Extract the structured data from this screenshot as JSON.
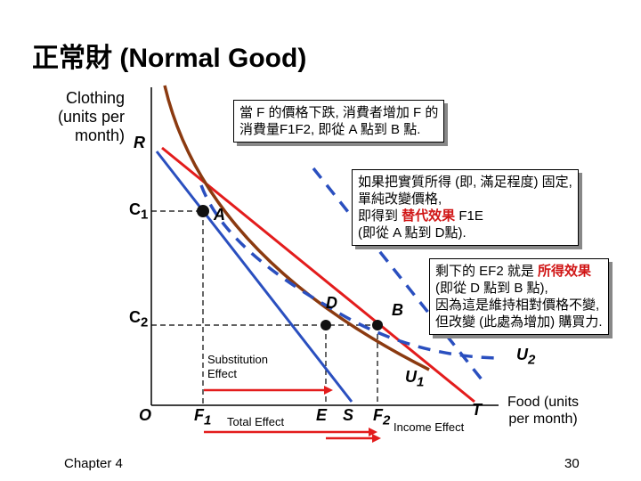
{
  "title": "正常財 (Normal Good)",
  "y_axis": {
    "label_lines": [
      "Clothing",
      "(units per",
      "month)"
    ],
    "letter": "R"
  },
  "x_axis": {
    "label_lines": [
      "Food (units",
      "per month)"
    ]
  },
  "points": {
    "origin": "O",
    "C1": "C",
    "C1_sub": "1",
    "C2": "C",
    "C2_sub": "2",
    "F1": "F",
    "F1_sub": "1",
    "F2": "F",
    "F2_sub": "2",
    "A": "A",
    "B": "B",
    "D": "D",
    "E": "E",
    "S": "S",
    "T": "T"
  },
  "curves": {
    "U1": "U",
    "U1_sub": "1",
    "U2": "U",
    "U2_sub": "2"
  },
  "labels": {
    "substitution_line1": "Substitution",
    "substitution_line2": "Effect",
    "total": "Total Effect",
    "income": "Income Effect"
  },
  "notes": {
    "top": [
      "當 F 的價格下跌, 消費者增加 F 的",
      "消費量F1F2, 即從 A 點到 B 點."
    ],
    "substitution": {
      "line1": "如果把實質所得 (即, 滿足程度) 固定,",
      "line2": "單純改變價格,",
      "line3_pre": "即得到 ",
      "line3_red": "替代效果",
      "line3_post": " F1E",
      "line4": "(即從 A 點到 D點)."
    },
    "income": {
      "line1_pre": "剩下的 EF2 就是 ",
      "line1_red": "所得效果",
      "line2": "(即從 D 點到 B 點),",
      "line3": "因為這是維持相對價格不變,",
      "line4": "但改變 (此處為增加) 購買力."
    }
  },
  "colors": {
    "blue": "#2a4fbf",
    "red": "#e31c1c",
    "brown": "#8b3a10",
    "dash_blue": "#2a4fbf"
  },
  "footer": {
    "left": "Chapter 4",
    "page": "30"
  }
}
